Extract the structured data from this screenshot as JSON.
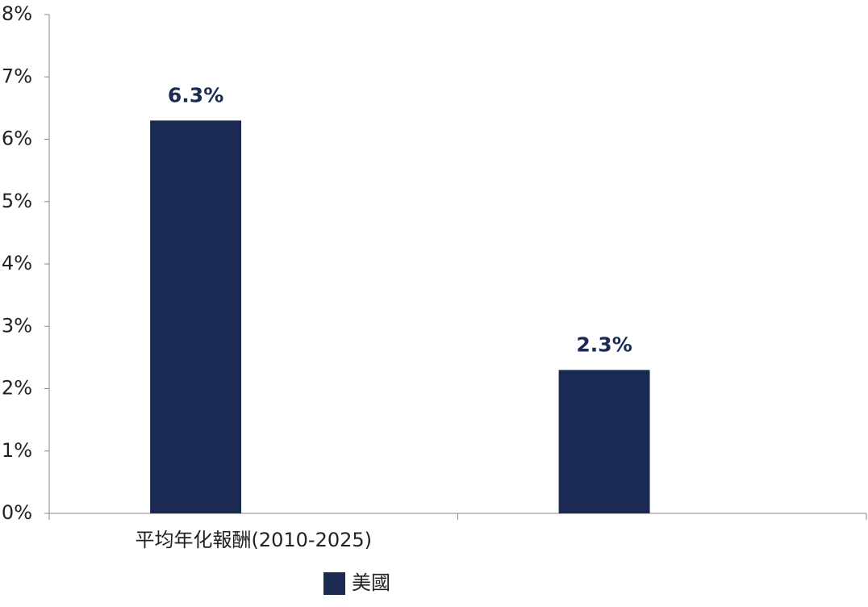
{
  "chart_data": {
    "type": "bar",
    "categories": [
      "平均年化報酬(2010-2025)",
      null
    ],
    "series": [
      {
        "name": "美國",
        "color": "#1a2a52",
        "values": [
          6.3,
          2.3
        ],
        "value_labels": [
          "6.3%",
          "2.3%"
        ]
      }
    ],
    "ylim": [
      0,
      8
    ],
    "yticks": [
      {
        "value": 0,
        "label": "0%"
      },
      {
        "value": 1,
        "label": "1%"
      },
      {
        "value": 2,
        "label": "2%"
      },
      {
        "value": 3,
        "label": "3%"
      },
      {
        "value": 4,
        "label": "4%"
      },
      {
        "value": 5,
        "label": "5%"
      },
      {
        "value": 6,
        "label": "6%"
      },
      {
        "value": 7,
        "label": "7%"
      },
      {
        "value": 8,
        "label": "8%"
      }
    ],
    "grid": false
  }
}
